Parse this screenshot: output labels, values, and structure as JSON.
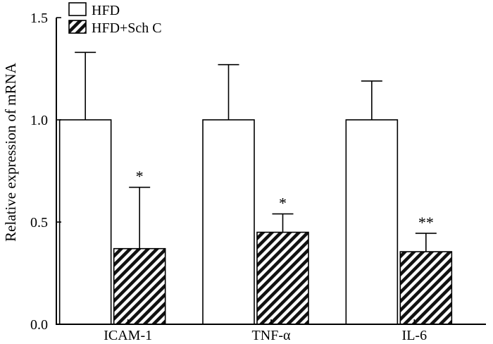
{
  "chart_data": {
    "type": "bar",
    "title": "",
    "xlabel": "",
    "ylabel": "Relative expression of mRNA",
    "ylim": [
      0.0,
      1.5
    ],
    "yticks": [
      "0.0",
      "0.5",
      "1.0",
      "1.5"
    ],
    "categories": [
      "ICAM-1",
      "TNF-α",
      "IL-6"
    ],
    "legend_position": "top-left",
    "grid": false,
    "series": [
      {
        "name": "HFD",
        "fill": "white",
        "values": [
          1.0,
          1.0,
          1.0
        ],
        "errors": [
          0.33,
          0.27,
          0.19
        ],
        "annotations": [
          "",
          "",
          ""
        ]
      },
      {
        "name": "HFD+Sch C",
        "fill": "hatched",
        "values": [
          0.37,
          0.45,
          0.355
        ],
        "errors": [
          0.3,
          0.09,
          0.09
        ],
        "annotations": [
          "*",
          "*",
          "**"
        ]
      }
    ],
    "colors": {
      "axis": "#000000",
      "bar_fill": "#ffffff",
      "hatch": "#000000"
    }
  }
}
